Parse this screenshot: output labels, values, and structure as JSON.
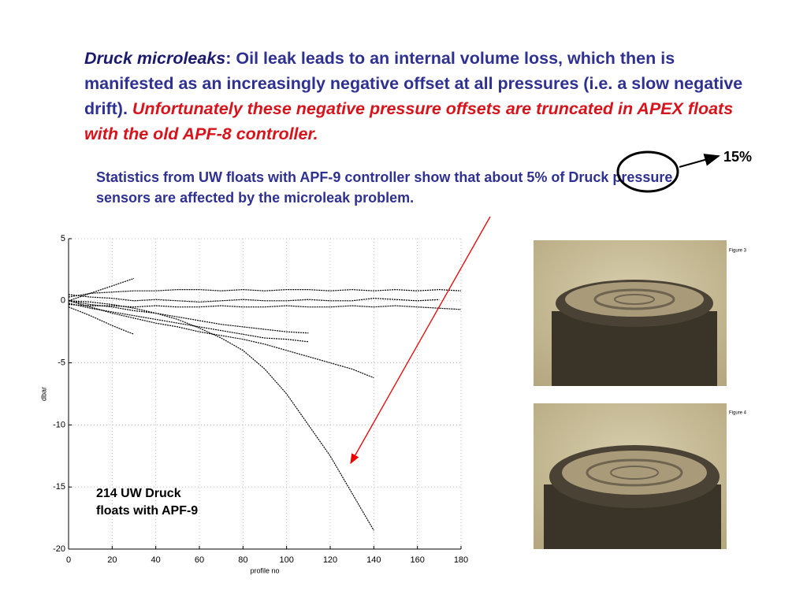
{
  "slide": {
    "para1": {
      "lead": "Druck microleaks",
      "body": ": Oil leak leads to an internal volume loss, which then is manifested as an increasingly negative offset at all pressures (i.e. a slow negative drift). ",
      "warning": "Unfortunately these negative pressure offsets are truncated in APEX floats with the old APF-8 controller."
    },
    "para2": "Statistics from UW floats with APF-9 controller show that about 5% of Druck pressure sensors are affected by the microleak problem.",
    "callout": "15%",
    "figures": [
      "Figure 3",
      "Figure 4"
    ]
  },
  "chart_data": {
    "type": "line",
    "xlabel": "profile no",
    "ylabel": "dbar",
    "annotation": [
      "214 UW Druck",
      "floats with APF-9"
    ],
    "x": [
      0,
      10,
      20,
      30,
      40,
      50,
      60,
      70,
      80,
      90,
      100,
      110,
      120,
      130,
      140,
      150,
      160,
      170,
      180
    ],
    "series": [
      {
        "color": "#000000",
        "values": [
          0,
          -0.1,
          -0.3,
          -0.6,
          -1,
          -1.5,
          -2.2,
          -3,
          -4,
          -5.5,
          -7.5,
          -10,
          -12.5,
          -15.5,
          -18.5,
          null,
          null,
          null,
          null
        ]
      },
      {
        "color": "#000000",
        "values": [
          0,
          -0.5,
          -1,
          -1.4,
          -1.8,
          -2.1,
          -2.5,
          -2.8,
          -3.1,
          -3.5,
          -4,
          -4.5,
          -5,
          -5.5,
          -6.2,
          null,
          null,
          null,
          null
        ]
      },
      {
        "color": "#000000",
        "values": [
          -0.2,
          -0.6,
          -0.9,
          -1.2,
          -1.5,
          -1.8,
          -2.1,
          -2.4,
          -2.7,
          -3,
          -3.1,
          -3.3,
          null,
          null,
          null,
          null,
          null,
          null,
          null
        ]
      },
      {
        "color": "#000000",
        "values": [
          0,
          -0.3,
          -0.5,
          -0.8,
          -1,
          -1.3,
          -1.6,
          -1.9,
          -2.1,
          -2.3,
          -2.5,
          -2.6,
          null,
          null,
          null,
          null,
          null,
          null,
          null
        ]
      },
      {
        "color": "#000000",
        "values": [
          0.3,
          0.6,
          0.7,
          0.8,
          0.8,
          0.9,
          0.9,
          0.8,
          0.9,
          0.8,
          0.9,
          0.9,
          0.8,
          0.9,
          0.8,
          0.9,
          0.8,
          0.9,
          0.8
        ]
      },
      {
        "color": "#000000",
        "values": [
          -0.3,
          -0.4,
          -0.4,
          -0.5,
          -0.4,
          -0.5,
          -0.5,
          -0.4,
          -0.5,
          -0.5,
          -0.4,
          -0.5,
          -0.5,
          -0.4,
          -0.5,
          -0.4,
          -0.5,
          -0.6,
          -0.7
        ]
      },
      {
        "color": "#000000",
        "values": [
          0.5,
          0.3,
          0.2,
          0,
          0.1,
          0,
          -0.1,
          0,
          0.1,
          0,
          0,
          0.1,
          0,
          0,
          0.2,
          0.1,
          0,
          0.1,
          null
        ]
      },
      {
        "color": "#000000",
        "values": [
          0,
          0.6,
          1.2,
          1.8,
          null,
          null,
          null,
          null,
          null,
          null,
          null,
          null,
          null,
          null,
          null,
          null,
          null,
          null,
          null
        ]
      },
      {
        "color": "#000000",
        "values": [
          -0.5,
          -1.2,
          -2,
          -2.7,
          null,
          null,
          null,
          null,
          null,
          null,
          null,
          null,
          null,
          null,
          null,
          null,
          null,
          null,
          null
        ]
      }
    ],
    "xlim": [
      0,
      180
    ],
    "xticks": [
      0,
      20,
      40,
      60,
      80,
      100,
      120,
      140,
      160,
      180
    ],
    "ylim": [
      -20,
      5
    ],
    "yticks": [
      -20,
      -15,
      -10,
      -5,
      0,
      5
    ],
    "grid": true
  }
}
